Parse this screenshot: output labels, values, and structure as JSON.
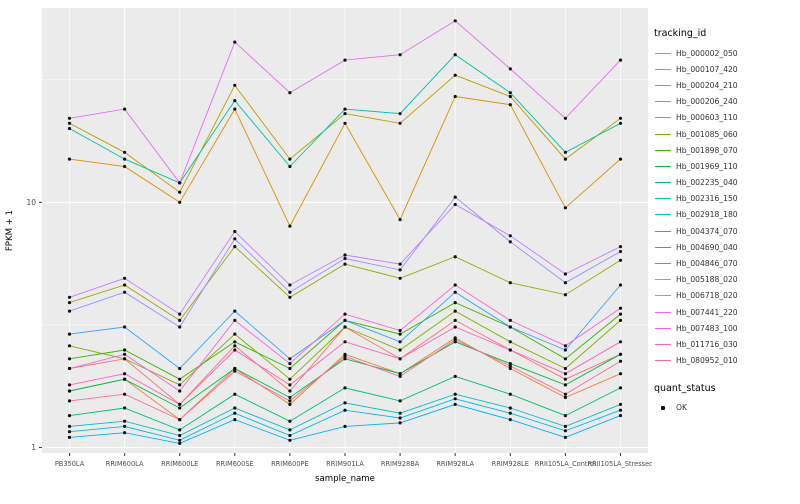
{
  "legend": {
    "tracking_title": "tracking_id",
    "quant_title": "quant_status",
    "quant_items": [
      {
        "label": "OK"
      }
    ]
  },
  "chart_data": {
    "type": "line",
    "title": "",
    "xlabel": "sample_name",
    "ylabel": "FPKM + 1",
    "scale_y": "log10",
    "ylim": [
      0.95,
      62
    ],
    "yticks": [
      {
        "value": 1,
        "label": "1"
      },
      {
        "value": 10,
        "label": "10"
      }
    ],
    "minor_gridlines": [
      3.162,
      31.62
    ],
    "panel_bg": "#EBEBEB",
    "grid_color": "#FFFFFF",
    "point_color": "#111111",
    "axis_text_color": "#4D4D4D",
    "categories": [
      "PB350LA",
      "RRIM600LA",
      "RRIM600LE",
      "RRIM600SE",
      "RRIM600PE",
      "RRIM901LA",
      "RRIM928BA",
      "RRIM928LA",
      "RRIM928LE",
      "RRII105LA_Control",
      "RRII105LA_Stressed"
    ],
    "series": [
      {
        "name": "Hb_000002_050",
        "color": "#F8766D",
        "values": [
          2.1,
          2.3,
          1.5,
          2.6,
          1.7,
          3.1,
          2.3,
          3.3,
          2.5,
          1.9,
          2.4
        ]
      },
      {
        "name": "Hb_000107_420",
        "color": "#EA8331",
        "values": [
          1.7,
          1.9,
          1.3,
          2.1,
          1.5,
          2.4,
          2.0,
          2.8,
          2.1,
          1.6,
          2.0
        ]
      },
      {
        "name": "Hb_000204_210",
        "color": "#D89000",
        "values": [
          15,
          14,
          10,
          24,
          8,
          21,
          8.5,
          27,
          25,
          9.5,
          15
        ]
      },
      {
        "name": "Hb_000206_240",
        "color": "#C09B00",
        "values": [
          21,
          16,
          11,
          30,
          15,
          23,
          21,
          33,
          27,
          15,
          22
        ]
      },
      {
        "name": "Hb_000603_110",
        "color": "#A3A500",
        "values": [
          3.9,
          4.6,
          3.3,
          6.6,
          4.1,
          5.6,
          4.9,
          6.0,
          4.7,
          4.2,
          5.8
        ]
      },
      {
        "name": "Hb_001085_060",
        "color": "#7CAE00",
        "values": [
          2.6,
          2.3,
          1.8,
          2.9,
          1.9,
          3.1,
          2.5,
          3.6,
          2.7,
          2.1,
          3.3
        ]
      },
      {
        "name": "Hb_001898_070",
        "color": "#39B600",
        "values": [
          2.3,
          2.5,
          1.9,
          2.7,
          2.1,
          3.3,
          2.9,
          3.9,
          3.1,
          2.3,
          3.5
        ]
      },
      {
        "name": "Hb_001969_110",
        "color": "#00BB4E",
        "values": [
          1.7,
          1.9,
          1.45,
          2.1,
          1.6,
          2.3,
          2.0,
          2.7,
          2.2,
          1.8,
          2.4
        ]
      },
      {
        "name": "Hb_002235_040",
        "color": "#00BF7D",
        "values": [
          1.35,
          1.45,
          1.18,
          1.65,
          1.28,
          1.75,
          1.55,
          1.95,
          1.65,
          1.35,
          1.75
        ]
      },
      {
        "name": "Hb_002316_150",
        "color": "#00C1A3",
        "values": [
          20,
          15,
          12,
          26,
          14,
          24,
          23,
          40,
          28,
          16,
          21
        ]
      },
      {
        "name": "Hb_002918_180",
        "color": "#00BFC4",
        "values": [
          1.22,
          1.28,
          1.12,
          1.45,
          1.18,
          1.52,
          1.38,
          1.65,
          1.45,
          1.22,
          1.5
        ]
      },
      {
        "name": "Hb_004374_070",
        "color": "#00BAE0",
        "values": [
          1.16,
          1.22,
          1.07,
          1.38,
          1.12,
          1.42,
          1.32,
          1.58,
          1.38,
          1.17,
          1.42
        ]
      },
      {
        "name": "Hb_004690_040",
        "color": "#00B0F6",
        "values": [
          1.1,
          1.15,
          1.04,
          1.3,
          1.07,
          1.22,
          1.26,
          1.5,
          1.3,
          1.1,
          1.35
        ]
      },
      {
        "name": "Hb_004846_070",
        "color": "#35A2FF",
        "values": [
          2.9,
          3.1,
          2.1,
          3.6,
          2.3,
          3.3,
          2.7,
          4.3,
          3.1,
          2.5,
          4.6
        ]
      },
      {
        "name": "Hb_005188_020",
        "color": "#9590FF",
        "values": [
          3.6,
          4.3,
          3.1,
          7.1,
          4.3,
          5.9,
          5.3,
          10.5,
          6.9,
          4.7,
          6.3
        ]
      },
      {
        "name": "Hb_006718_020",
        "color": "#C77CFF",
        "values": [
          4.1,
          4.9,
          3.5,
          7.6,
          4.6,
          6.1,
          5.6,
          9.8,
          7.3,
          5.1,
          6.6
        ]
      },
      {
        "name": "Hb_007441_220",
        "color": "#E76BF3",
        "values": [
          22,
          24,
          12,
          45,
          28,
          38,
          40,
          55,
          35,
          22,
          38
        ]
      },
      {
        "name": "Hb_007483_100",
        "color": "#FA62DB",
        "values": [
          2.1,
          2.4,
          1.7,
          3.3,
          2.2,
          3.5,
          3.0,
          4.6,
          3.3,
          2.6,
          3.7
        ]
      },
      {
        "name": "Hb_011716_030",
        "color": "#FF62BC",
        "values": [
          1.8,
          2.0,
          1.5,
          2.5,
          1.8,
          2.7,
          2.3,
          3.1,
          2.5,
          2.0,
          2.7
        ]
      },
      {
        "name": "Hb_080952_010",
        "color": "#FF6A98",
        "values": [
          1.55,
          1.65,
          1.3,
          2.05,
          1.55,
          2.35,
          1.95,
          2.75,
          2.15,
          1.65,
          2.25
        ]
      }
    ]
  }
}
